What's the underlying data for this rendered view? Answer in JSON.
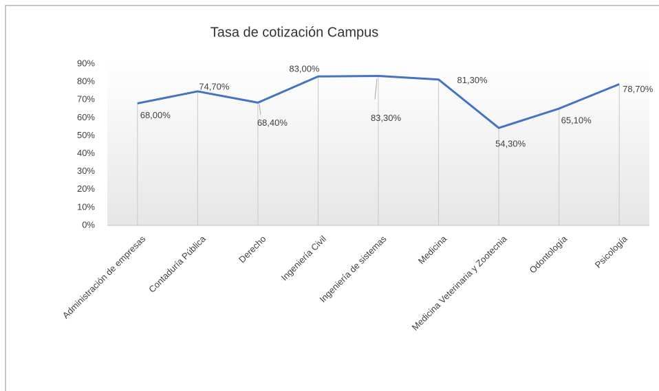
{
  "chart_data": {
    "type": "line",
    "title": "Tasa de cotización Campus",
    "categories": [
      "Administración de empresas",
      "Contaduría Pública",
      "Derecho",
      "Ingeniería Civil",
      "Ingeniería de sistemas",
      "Medicina",
      "Medicina Veterinaria y Zootecnia",
      "Odontología",
      "Psicología"
    ],
    "values": [
      68.0,
      74.7,
      68.4,
      83.0,
      83.3,
      81.3,
      54.3,
      65.1,
      78.7
    ],
    "value_labels": [
      "68,00%",
      "74,70%",
      "68,40%",
      "83,00%",
      "83,30%",
      "81,30%",
      "54,30%",
      "65,10%",
      "78,70%"
    ],
    "color": "#4472c4",
    "ylim": [
      0,
      90
    ],
    "yticks": [
      {
        "value": 0,
        "label": "0%"
      },
      {
        "value": 10,
        "label": "10%"
      },
      {
        "value": 20,
        "label": "20%"
      },
      {
        "value": 30,
        "label": "30%"
      },
      {
        "value": 40,
        "label": "40%"
      },
      {
        "value": 50,
        "label": "50%"
      },
      {
        "value": 60,
        "label": "60%"
      },
      {
        "value": 70,
        "label": "70%"
      },
      {
        "value": 80,
        "label": "80%"
      },
      {
        "value": 90,
        "label": "90%"
      }
    ],
    "grid": false
  }
}
